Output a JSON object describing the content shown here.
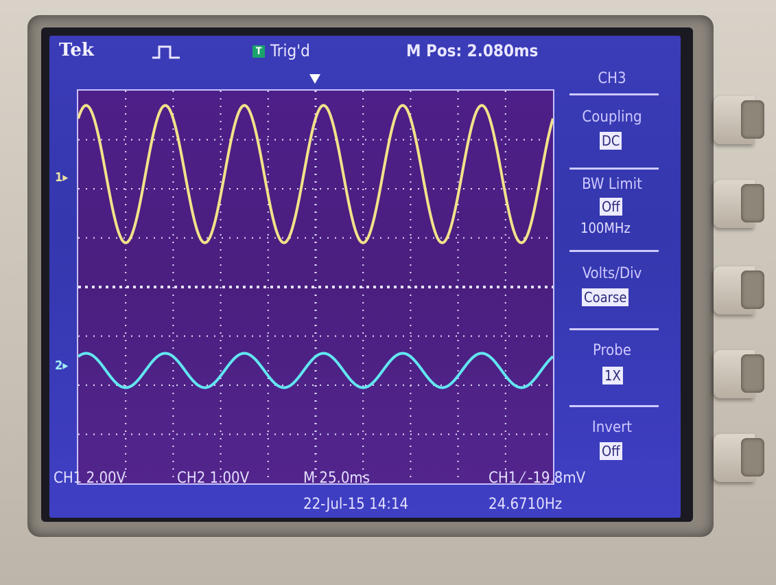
{
  "header": {
    "brand": "Tek",
    "acquisition_state_icon": "run-square-pulse-icon",
    "trigger_box_label": "T",
    "trigger_status": "Trig'd",
    "main_position": "M Pos: 2.080ms"
  },
  "side_menu": {
    "title": "CH3",
    "items": [
      {
        "label": "Coupling",
        "value": "DC"
      },
      {
        "label": "BW Limit",
        "value": "Off",
        "extra": "100MHz"
      },
      {
        "label": "Volts/Div",
        "value": "Coarse"
      },
      {
        "label": "Probe",
        "value": "1X"
      },
      {
        "label": "Invert",
        "value": "Off"
      }
    ]
  },
  "channel_markers": {
    "ch1": "1▸",
    "ch2": "2▸"
  },
  "bottom": {
    "ch1_scale": "CH1  2.00V",
    "ch2_scale": "CH2  1.00V",
    "timebase": "M 25.0ms",
    "trigger": "CH1  ⁄  -19.8mV",
    "datetime": "22-Jul-15 14:14",
    "frequency": "24.6710Hz"
  },
  "colors": {
    "ch1_trace": "#f2e28a",
    "ch2_trace": "#63e6f2",
    "screen_bg": "#3a3bb5",
    "graticule_bg": "#4b1f84"
  },
  "chart_data": {
    "type": "line",
    "grid_divisions": {
      "x": 10,
      "y": 8
    },
    "series": [
      {
        "name": "CH1",
        "shape": "sine",
        "periods_visible": 6,
        "amplitude_div": 1.4,
        "offset_div": 2.3
      },
      {
        "name": "CH2",
        "shape": "sine",
        "periods_visible": 6,
        "amplitude_div": 0.35,
        "offset_div": -1.7
      }
    ]
  }
}
